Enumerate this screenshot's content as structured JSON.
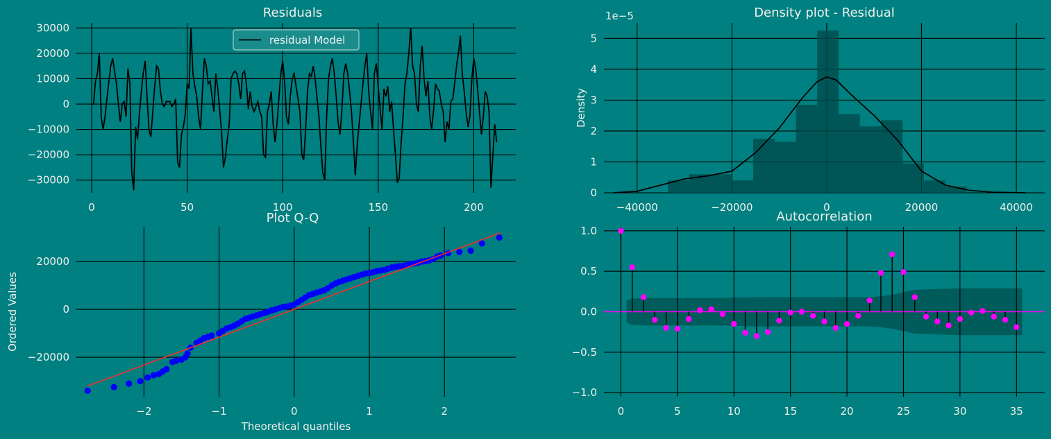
{
  "colors": {
    "background": "#008080",
    "grid": "#000000",
    "text": "#f0f0f0",
    "residual_line": "#000000",
    "hist_bar": "#004a4a",
    "qq_points": "#0000ff",
    "qq_line": "#ff2a2a",
    "acf_marker": "#ff00ff",
    "acf_band": "#005555"
  },
  "chart_data": [
    {
      "id": "residuals",
      "type": "line",
      "title": "Residuals",
      "xlabel": "",
      "ylabel": "",
      "xlim": [
        -8,
        222
      ],
      "ylim": [
        -35000,
        32000
      ],
      "xticks": [
        0,
        50,
        100,
        150,
        200
      ],
      "yticks": [
        -30000,
        -20000,
        -10000,
        0,
        10000,
        20000,
        30000
      ],
      "ytick_labels": [
        "−30000",
        "−20000",
        "−10000",
        "0",
        "10000",
        "20000",
        "30000"
      ],
      "legend": {
        "label": "residual Model",
        "placement": "top-center"
      },
      "series": [
        {
          "name": "residual Model",
          "values": [
            0,
            0,
            9000,
            12000,
            20000,
            -5000,
            -10000,
            -5000,
            2000,
            9000,
            15000,
            18000,
            13000,
            8000,
            0,
            -7000,
            0,
            1000,
            -5000,
            14000,
            8000,
            -27000,
            -34000,
            -9000,
            -14000,
            -4000,
            5000,
            12000,
            17000,
            3000,
            -10000,
            -13000,
            -3000,
            7000,
            15000,
            14000,
            5000,
            0,
            -1000,
            1000,
            1000,
            1000,
            -1000,
            0,
            2000,
            -23000,
            -25000,
            -12000,
            -9000,
            -4000,
            8000,
            6000,
            30000,
            12000,
            7000,
            3000,
            -5000,
            -10000,
            5000,
            18000,
            15000,
            8000,
            9000,
            3000,
            -3000,
            12000,
            6000,
            -2000,
            -11000,
            -25000,
            -21000,
            -14000,
            -8000,
            10000,
            12000,
            13000,
            12000,
            8000,
            2000,
            12000,
            13000,
            8000,
            -2000,
            5000,
            -1000,
            -3000,
            -1000,
            1000,
            -3000,
            -5000,
            -20000,
            -21000,
            -3000,
            0,
            5000,
            -8000,
            -15000,
            -8000,
            2000,
            12000,
            17000,
            9000,
            -5000,
            -8000,
            3000,
            10000,
            12000,
            7000,
            2000,
            -3000,
            -20000,
            -22000,
            -10000,
            5000,
            12000,
            11000,
            15000,
            10000,
            2000,
            -5000,
            -17000,
            -27000,
            -30000,
            -5000,
            10000,
            15000,
            18000,
            12000,
            3000,
            -7000,
            -12000,
            -2000,
            12000,
            16000,
            12000,
            5000,
            -3000,
            -15000,
            -28000,
            -16000,
            -8000,
            0,
            8000,
            15000,
            20000,
            5000,
            -3000,
            -10000,
            12000,
            16000,
            7000,
            -2000,
            -10000,
            6000,
            3000,
            7000,
            -3000,
            1000,
            -10000,
            -20000,
            -31000,
            -29000,
            -15000,
            -5000,
            8000,
            12000,
            20000,
            30000,
            15000,
            12000,
            0,
            -3000,
            15000,
            23000,
            10000,
            3000,
            9000,
            -5000,
            -10000,
            -2000,
            8000,
            6000,
            5000,
            0,
            -3000,
            -15000,
            -7000,
            -10000,
            1000,
            2000,
            8000,
            15000,
            20000,
            27000,
            12000,
            5000,
            -3000,
            -9000,
            -5000,
            10000,
            18000,
            14000,
            6000,
            -3000,
            -12000,
            -5000,
            5000,
            3000,
            -3000,
            -33000,
            -20000,
            -8000,
            -15000
          ]
        }
      ]
    },
    {
      "id": "density",
      "type": "bar",
      "title": "Density plot - Residual",
      "xlabel": "",
      "ylabel": "Density",
      "scale_label": "1e−5",
      "xlim": [
        -47000,
        46000
      ],
      "ylim": [
        0,
        5.5
      ],
      "xticks": [
        -40000,
        -20000,
        0,
        20000,
        40000
      ],
      "xtick_labels": [
        "−40000",
        "−20000",
        "0",
        "20000",
        "40000"
      ],
      "yticks": [
        0,
        1,
        2,
        3,
        4,
        5
      ],
      "bin_edges": [
        -33500,
        -29000,
        -24500,
        -20000,
        -15500,
        -11000,
        -6500,
        -2000,
        2500,
        7000,
        11500,
        16000,
        20500,
        25000,
        29500
      ],
      "values": [
        0.4,
        0.6,
        0.6,
        0.4,
        1.75,
        1.65,
        2.85,
        5.25,
        2.55,
        2.15,
        2.35,
        0.95,
        0.4,
        0.2
      ],
      "kde": {
        "x": [
          -45000,
          -40000,
          -35000,
          -30000,
          -25000,
          -20000,
          -15000,
          -10000,
          -5000,
          -2000,
          0,
          2000,
          5000,
          10000,
          15000,
          20000,
          25000,
          30000,
          35000,
          42000
        ],
        "y": [
          0,
          0.05,
          0.25,
          0.45,
          0.55,
          0.7,
          1.3,
          2.1,
          3.1,
          3.6,
          3.75,
          3.65,
          3.2,
          2.5,
          1.7,
          0.7,
          0.25,
          0.08,
          0.02,
          0
        ]
      }
    },
    {
      "id": "qq",
      "type": "scatter",
      "title": "Plot Q-Q",
      "xlabel": "Theoretical quantiles",
      "ylabel": "Ordered Values",
      "xlim": [
        -2.9,
        2.95
      ],
      "ylim": [
        -36500,
        34500
      ],
      "xticks": [
        -2,
        -1,
        0,
        1,
        2
      ],
      "xtick_labels": [
        "−2",
        "−1",
        "0",
        "1",
        "2"
      ],
      "yticks": [
        -20000,
        0,
        20000
      ],
      "ytick_labels": [
        "−20000",
        "0",
        "20000"
      ],
      "fit_line": {
        "x": [
          -2.75,
          2.75
        ],
        "y": [
          -32000,
          32000
        ]
      },
      "x": [
        -2.75,
        -2.4,
        -2.2,
        -2.05,
        -1.95,
        -1.87,
        -1.8,
        -1.75,
        -1.7,
        -1.62,
        -1.57,
        -1.5,
        -1.45,
        -1.42,
        -1.38,
        -1.3,
        -1.25,
        -1.2,
        -1.15,
        -1.1,
        -1.0,
        -0.95,
        -0.9,
        -0.85,
        -0.8,
        -0.75,
        -0.7,
        -0.65,
        -0.6,
        -0.55,
        -0.5,
        -0.45,
        -0.4,
        -0.35,
        -0.3,
        -0.25,
        -0.2,
        -0.15,
        -0.1,
        -0.05,
        0.0,
        0.05,
        0.1,
        0.15,
        0.2,
        0.25,
        0.3,
        0.35,
        0.4,
        0.45,
        0.5,
        0.55,
        0.6,
        0.65,
        0.7,
        0.75,
        0.8,
        0.85,
        0.9,
        0.95,
        1.0,
        1.05,
        1.1,
        1.15,
        1.2,
        1.25,
        1.3,
        1.35,
        1.4,
        1.45,
        1.5,
        1.55,
        1.6,
        1.65,
        1.7,
        1.75,
        1.8,
        1.85,
        1.9,
        1.95,
        2.05,
        2.2,
        2.35,
        2.5,
        2.73
      ],
      "y": [
        -34000,
        -32500,
        -31000,
        -30000,
        -28500,
        -27500,
        -27000,
        -26000,
        -25000,
        -22000,
        -21500,
        -21000,
        -20000,
        -18500,
        -16000,
        -14000,
        -13000,
        -12000,
        -11500,
        -11000,
        -10000,
        -9000,
        -8000,
        -7500,
        -6800,
        -6000,
        -5000,
        -4000,
        -3500,
        -3000,
        -2500,
        -2000,
        -1500,
        -1000,
        -500,
        0,
        500,
        1000,
        1200,
        1500,
        2000,
        3000,
        4000,
        5000,
        6000,
        6500,
        7000,
        7500,
        8000,
        8800,
        10000,
        10800,
        11500,
        12000,
        12500,
        13000,
        13500,
        14000,
        14500,
        15000,
        15200,
        15500,
        16000,
        16200,
        16500,
        17000,
        17500,
        17800,
        18000,
        18200,
        18500,
        19000,
        19200,
        19500,
        20000,
        20200,
        20500,
        21000,
        22000,
        22500,
        23500,
        24000,
        24500,
        27500,
        30000
      ]
    },
    {
      "id": "acf",
      "type": "scatter",
      "title": "Autocorrelation",
      "xlabel": "",
      "ylabel": "",
      "xlim": [
        -1.5,
        37.5
      ],
      "ylim": [
        -1.05,
        1.05
      ],
      "xticks": [
        0,
        5,
        10,
        15,
        20,
        25,
        30,
        35
      ],
      "yticks": [
        -1.0,
        -0.5,
        0.0,
        0.5,
        1.0
      ],
      "ytick_labels": [
        "−1.0",
        "−0.5",
        "0.0",
        "0.5",
        "1.0"
      ],
      "lags": [
        0,
        1,
        2,
        3,
        4,
        5,
        6,
        7,
        8,
        9,
        10,
        11,
        12,
        13,
        14,
        15,
        16,
        17,
        18,
        19,
        20,
        21,
        22,
        23,
        24,
        25,
        26,
        27,
        28,
        29,
        30,
        31,
        32,
        33,
        34,
        35
      ],
      "values": [
        1.0,
        0.55,
        0.18,
        -0.1,
        -0.2,
        -0.21,
        -0.09,
        0.02,
        0.03,
        -0.03,
        -0.15,
        -0.26,
        -0.3,
        -0.25,
        -0.11,
        -0.01,
        0.0,
        -0.05,
        -0.12,
        -0.2,
        -0.15,
        -0.05,
        0.14,
        0.48,
        0.71,
        0.49,
        0.18,
        -0.06,
        -0.12,
        -0.17,
        -0.09,
        -0.01,
        0.01,
        -0.06,
        -0.1,
        -0.19
      ],
      "confidence_band": {
        "lags": [
          0.5,
          1,
          2,
          3,
          5,
          8,
          12,
          16,
          20,
          22,
          23,
          24,
          25,
          26,
          28,
          30,
          32,
          35.5
        ],
        "upper": [
          0.14,
          0.16,
          0.17,
          0.17,
          0.17,
          0.17,
          0.18,
          0.18,
          0.18,
          0.18,
          0.19,
          0.21,
          0.24,
          0.27,
          0.28,
          0.29,
          0.29,
          0.29
        ]
      }
    }
  ]
}
